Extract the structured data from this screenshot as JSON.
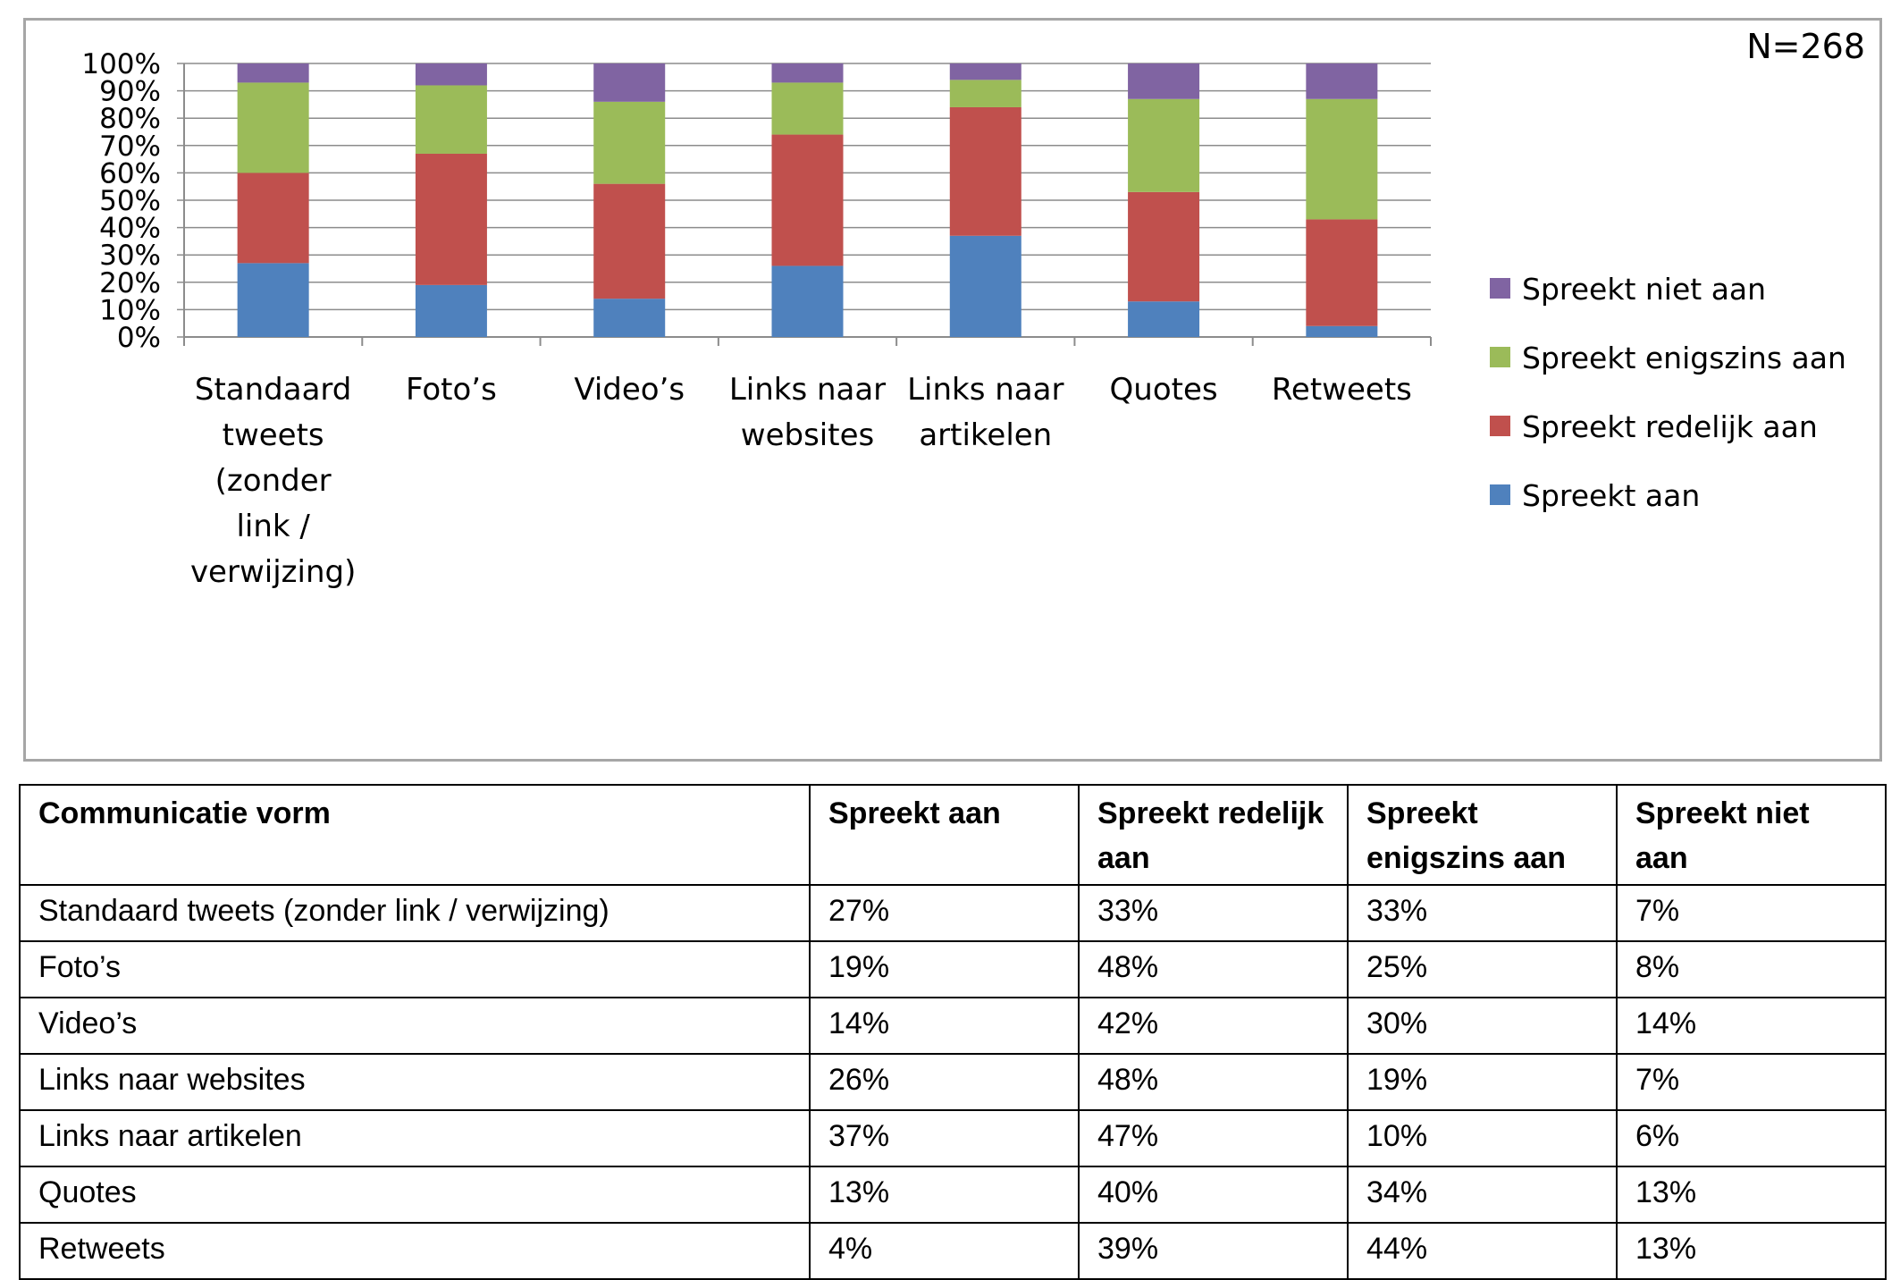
{
  "chart_data": {
    "type": "bar",
    "stacked": true,
    "annotation": "N=268",
    "categories": [
      [
        "Standaard",
        "tweets",
        "(zonder",
        "link /",
        "verwijzing)"
      ],
      [
        "Foto’s"
      ],
      [
        "Video’s"
      ],
      [
        "Links naar",
        "websites"
      ],
      [
        "Links naar",
        "artikelen"
      ],
      [
        "Quotes"
      ],
      [
        "Retweets"
      ]
    ],
    "yticks": [
      "0%",
      "10%",
      "20%",
      "30%",
      "40%",
      "50%",
      "60%",
      "70%",
      "80%",
      "90%",
      "100%"
    ],
    "ylim": [
      0,
      100
    ],
    "grid": true,
    "legend_position": "right",
    "series": [
      {
        "name": "Spreekt aan",
        "color": "#4f81bd",
        "values": [
          27,
          19,
          14,
          26,
          37,
          13,
          4
        ]
      },
      {
        "name": "Spreekt redelijk aan",
        "color": "#c0504d",
        "values": [
          33,
          48,
          42,
          48,
          47,
          40,
          39
        ]
      },
      {
        "name": "Spreekt enigszins aan",
        "color": "#9bbb59",
        "values": [
          33,
          25,
          30,
          19,
          10,
          34,
          44
        ]
      },
      {
        "name": "Spreekt niet aan",
        "color": "#8064a2",
        "values": [
          7,
          8,
          14,
          7,
          6,
          13,
          13
        ]
      }
    ],
    "legend_order": [
      "Spreekt niet aan",
      "Spreekt enigszins aan",
      "Spreekt redelijk aan",
      "Spreekt aan"
    ]
  },
  "table": {
    "headers": [
      "Communicatie vorm",
      "Spreekt aan",
      "Spreekt redelijk aan",
      "Spreekt enigszins aan",
      "Spreekt niet aan"
    ],
    "rows": [
      [
        "Standaard tweets (zonder link / verwijzing)",
        "27%",
        "33%",
        "33%",
        "7%"
      ],
      [
        "Foto’s",
        "19%",
        "48%",
        "25%",
        "8%"
      ],
      [
        "Video’s",
        "14%",
        "42%",
        "30%",
        "14%"
      ],
      [
        "Links naar websites",
        "26%",
        "48%",
        "19%",
        "7%"
      ],
      [
        "Links naar artikelen",
        "37%",
        "47%",
        "10%",
        "6%"
      ],
      [
        "Quotes",
        "13%",
        "40%",
        "34%",
        "13%"
      ],
      [
        "Retweets",
        "4%",
        "39%",
        "44%",
        "13%"
      ]
    ]
  }
}
